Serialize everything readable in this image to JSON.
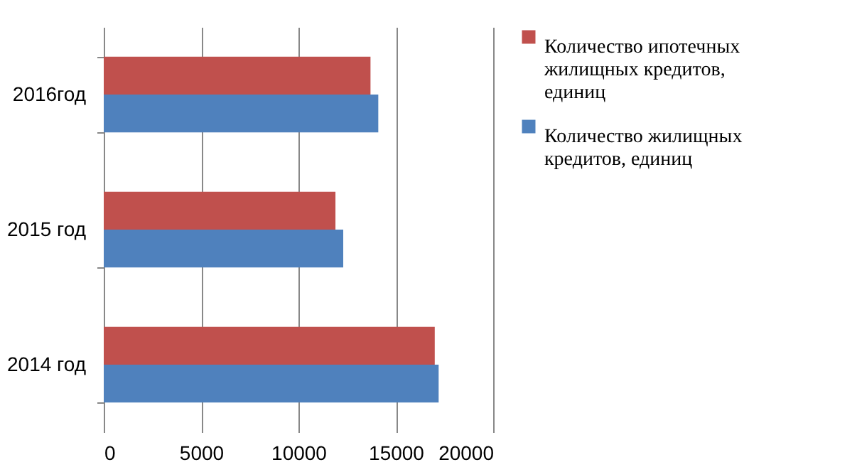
{
  "chart_data": {
    "type": "bar",
    "orientation": "horizontal",
    "categories": [
      "2016год",
      "2015 год",
      "2014 год"
    ],
    "series": [
      {
        "name": "Количество ипотечных жилищных кредитов, единиц",
        "color": "#c0504d",
        "values": [
          13700,
          11900,
          17000
        ]
      },
      {
        "name": "Количество жилищных кредитов, единиц",
        "color": "#4f81bd",
        "values": [
          14100,
          12300,
          17200
        ]
      }
    ],
    "xlim": [
      0,
      20000
    ],
    "xticks": [
      0,
      5000,
      10000,
      15000,
      20000
    ],
    "grid": "x",
    "legend": "right"
  }
}
